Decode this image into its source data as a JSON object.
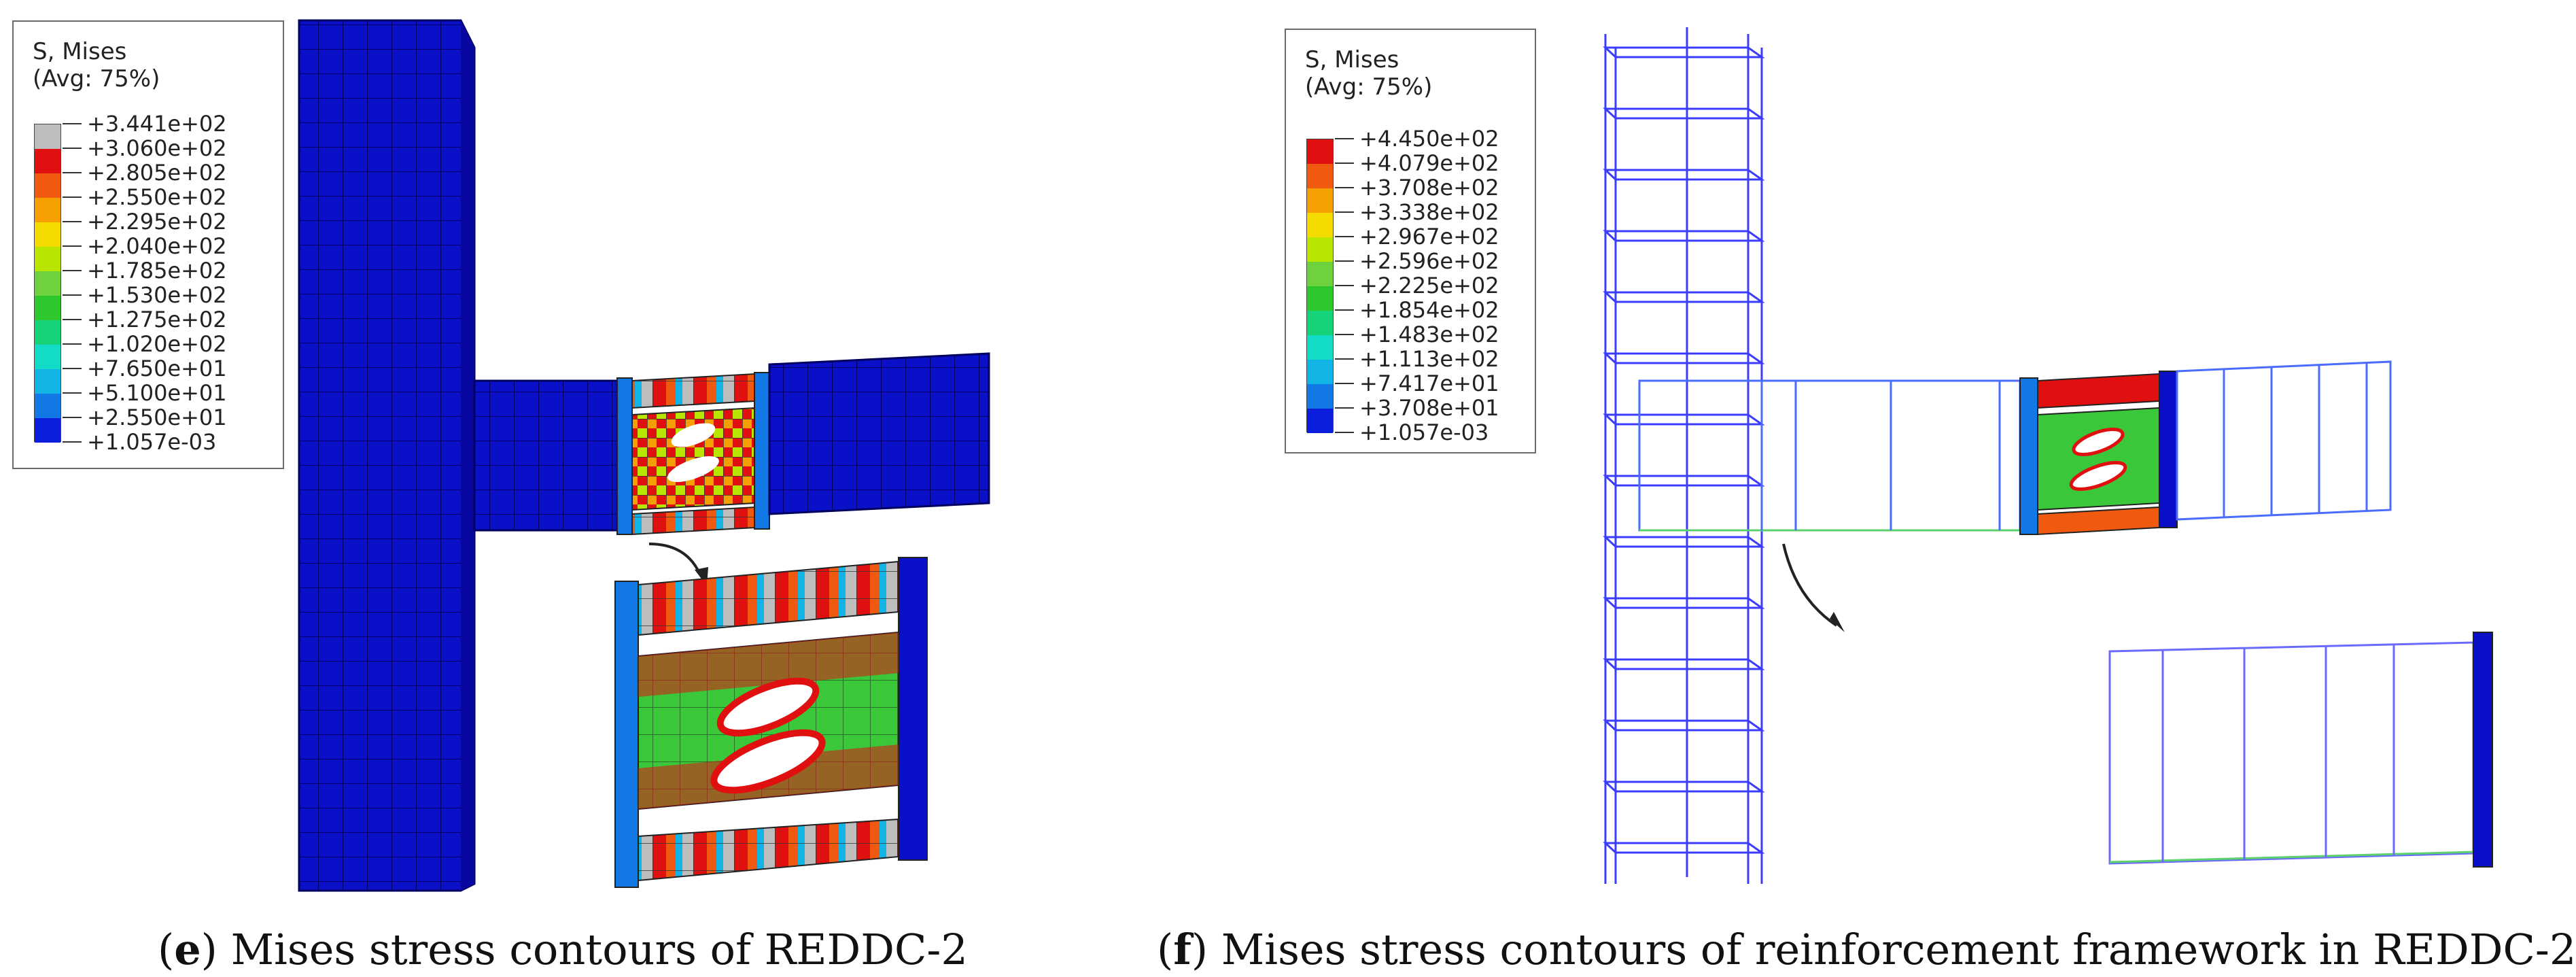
{
  "panels": [
    {
      "id": "e",
      "legend": {
        "title_line1": "S, Mises",
        "title_line2": "(Avg: 75%)",
        "values": [
          "+3.441e+02",
          "+3.060e+02",
          "+2.805e+02",
          "+2.550e+02",
          "+2.295e+02",
          "+2.040e+02",
          "+1.785e+02",
          "+1.530e+02",
          "+1.275e+02",
          "+1.020e+02",
          "+7.650e+01",
          "+5.100e+01",
          "+2.550e+01",
          "+1.057e-03"
        ],
        "colors": [
          "#bdbdbd",
          "#e01010",
          "#f05a10",
          "#f5a000",
          "#f5dc00",
          "#b8e600",
          "#6ed23c",
          "#2ec82e",
          "#16d278",
          "#12dcc8",
          "#12b4e6",
          "#1278e6",
          "#0a1edc"
        ]
      },
      "caption_letter": "e",
      "caption_text": "Mises stress contours of REDDC-2"
    },
    {
      "id": "f",
      "legend": {
        "title_line1": "S, Mises",
        "title_line2": "(Avg: 75%)",
        "values": [
          "+4.450e+02",
          "+4.079e+02",
          "+3.708e+02",
          "+3.338e+02",
          "+2.967e+02",
          "+2.596e+02",
          "+2.225e+02",
          "+1.854e+02",
          "+1.483e+02",
          "+1.113e+02",
          "+7.417e+01",
          "+3.708e+01",
          "+1.057e-03"
        ],
        "colors": [
          "#e01010",
          "#f05a10",
          "#f5a000",
          "#f5dc00",
          "#b8e600",
          "#6ed23c",
          "#2ec82e",
          "#16d278",
          "#12dcc8",
          "#12b4e6",
          "#1278e6",
          "#0a1edc"
        ]
      },
      "caption_letter": "f",
      "caption_text": "Mises stress contours of reinforcement framework in REDDC-2"
    }
  ]
}
